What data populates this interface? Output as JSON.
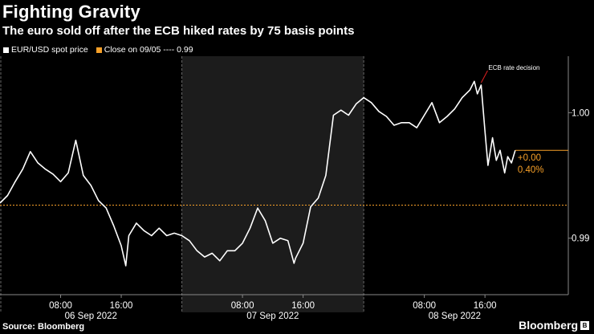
{
  "header": {
    "title": "Fighting Gravity",
    "subtitle": "The euro sold off after the ECB hiked rates by 75 basis points"
  },
  "footer": {
    "source": "Source: Bloomberg",
    "brand": "Bloomberg"
  },
  "chart_data": {
    "type": "line",
    "title": "Fighting Gravity",
    "subtitle": "The euro sold off after the ECB hiked rates by 75 basis points",
    "legend": [
      {
        "label": "EUR/USD spot price",
        "color": "#ffffff"
      },
      {
        "label": "Close on 09/05 ---- 0.99",
        "color": "#f7a028"
      }
    ],
    "legend_position": "top-left",
    "ylim": [
      0.9855,
      1.0045
    ],
    "yticks": [
      {
        "value": 0.99,
        "label": "0.99"
      },
      {
        "value": 1.0,
        "label": "1.00"
      }
    ],
    "xlim": [
      0,
      75
    ],
    "xticks": [
      {
        "x": 8,
        "label": "08:00"
      },
      {
        "x": 16,
        "label": "16:00"
      },
      {
        "x": 32,
        "label": "08:00"
      },
      {
        "x": 40,
        "label": "16:00"
      },
      {
        "x": 56,
        "label": "08:00"
      },
      {
        "x": 64,
        "label": "16:00"
      }
    ],
    "day_labels": [
      {
        "x": 12,
        "label": "06 Sep 2022"
      },
      {
        "x": 36,
        "label": "07 Sep 2022"
      },
      {
        "x": 60,
        "label": "08 Sep 2022"
      }
    ],
    "shaded_ranges": [
      [
        24,
        48
      ]
    ],
    "reference_line": {
      "value": 0.99263,
      "color": "#f7a028"
    },
    "series": [
      {
        "name": "EUR/USD spot price",
        "color": "#ffffff",
        "points": [
          [
            0,
            0.9928
          ],
          [
            1,
            0.9934
          ],
          [
            2,
            0.9945
          ],
          [
            3,
            0.9955
          ],
          [
            4,
            0.9969
          ],
          [
            5,
            0.996
          ],
          [
            6,
            0.9955
          ],
          [
            7,
            0.9951
          ],
          [
            8,
            0.9945
          ],
          [
            9,
            0.9952
          ],
          [
            10,
            0.9978
          ],
          [
            11,
            0.995
          ],
          [
            12,
            0.9942
          ],
          [
            13,
            0.993
          ],
          [
            14,
            0.9924
          ],
          [
            15,
            0.991
          ],
          [
            16,
            0.9894
          ],
          [
            16.6,
            0.9878
          ],
          [
            17,
            0.9902
          ],
          [
            18,
            0.9912
          ],
          [
            19,
            0.9906
          ],
          [
            20,
            0.9902
          ],
          [
            21,
            0.9908
          ],
          [
            22,
            0.9902
          ],
          [
            23,
            0.9904
          ],
          [
            24,
            0.9902
          ],
          [
            25,
            0.9898
          ],
          [
            26,
            0.989
          ],
          [
            27,
            0.9885
          ],
          [
            28,
            0.9888
          ],
          [
            29,
            0.9882
          ],
          [
            30,
            0.989
          ],
          [
            31,
            0.989
          ],
          [
            32,
            0.9896
          ],
          [
            33,
            0.9908
          ],
          [
            34,
            0.9924
          ],
          [
            35,
            0.9914
          ],
          [
            36,
            0.9896
          ],
          [
            37,
            0.99
          ],
          [
            38,
            0.9898
          ],
          [
            38.8,
            0.988
          ],
          [
            39,
            0.9884
          ],
          [
            40,
            0.9896
          ],
          [
            41,
            0.9925
          ],
          [
            42,
            0.9932
          ],
          [
            43,
            0.995
          ],
          [
            44,
            0.9998
          ],
          [
            45,
            1.0002
          ],
          [
            46,
            0.9998
          ],
          [
            47,
            1.0007
          ],
          [
            48,
            1.0012
          ],
          [
            49,
            1.0008
          ],
          [
            50,
            1.0001
          ],
          [
            51,
            0.9997
          ],
          [
            52,
            0.999
          ],
          [
            53,
            0.9992
          ],
          [
            54,
            0.9992
          ],
          [
            55,
            0.9988
          ],
          [
            56,
            0.9998
          ],
          [
            57,
            1.0008
          ],
          [
            58,
            0.9992
          ],
          [
            59,
            0.9997
          ],
          [
            60,
            1.0003
          ],
          [
            61,
            1.0012
          ],
          [
            62,
            1.0018
          ],
          [
            62.6,
            1.0025
          ],
          [
            63,
            1.0015
          ],
          [
            63.5,
            1.0022
          ],
          [
            64,
            0.9985
          ],
          [
            64.4,
            0.9958
          ],
          [
            65,
            0.998
          ],
          [
            65.5,
            0.9962
          ],
          [
            66,
            0.997
          ],
          [
            66.6,
            0.9952
          ],
          [
            67,
            0.9965
          ],
          [
            67.5,
            0.996
          ],
          [
            68,
            0.997
          ]
        ],
        "last_point_label": "+0.00",
        "change_label": "0.40%",
        "end_value_color": "#f7a028"
      }
    ],
    "annotations": [
      {
        "text": "ECB rate decision",
        "x": 63.5,
        "y": 1.0022
      }
    ]
  }
}
